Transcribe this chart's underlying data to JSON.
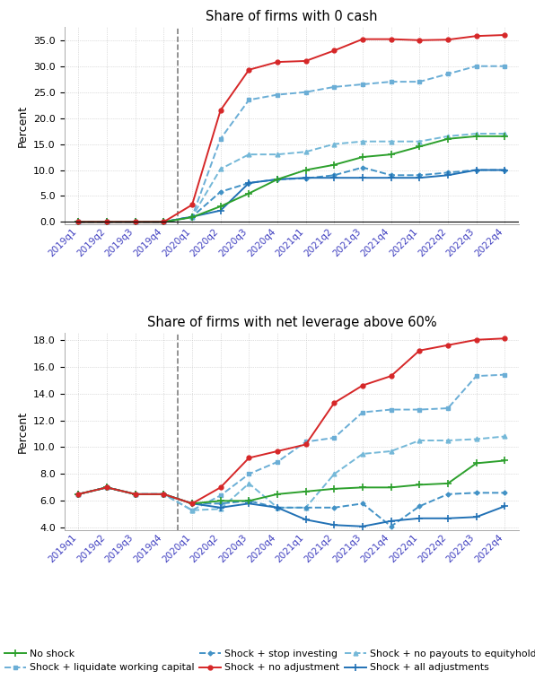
{
  "quarters": [
    "2019q1",
    "2019q2",
    "2019q3",
    "2019q4",
    "2020q1",
    "2020q2",
    "2020q3",
    "2020q4",
    "2021q1",
    "2021q2",
    "2021q3",
    "2021q4",
    "2022q1",
    "2022q2",
    "2022q3",
    "2022q4"
  ],
  "panel1": {
    "title": "Share of firms with 0 cash",
    "ylabel": "Percent",
    "ylim": [
      -0.5,
      37.5
    ],
    "yticks": [
      0.0,
      5.0,
      10.0,
      15.0,
      20.0,
      25.0,
      30.0,
      35.0
    ],
    "no_shock": [
      0.0,
      0.0,
      0.0,
      0.0,
      0.9,
      3.0,
      5.5,
      8.2,
      10.0,
      11.0,
      12.5,
      13.0,
      14.5,
      16.0,
      16.5,
      16.5
    ],
    "shock_no_adj": [
      0.0,
      0.0,
      0.0,
      0.0,
      3.3,
      21.5,
      29.3,
      30.8,
      31.0,
      33.0,
      35.2,
      35.2,
      35.0,
      35.1,
      35.8,
      36.0
    ],
    "shock_liquidate": [
      0.0,
      0.0,
      0.0,
      0.0,
      1.0,
      16.0,
      23.5,
      24.5,
      25.0,
      26.0,
      26.5,
      27.0,
      27.0,
      28.5,
      30.0,
      30.0
    ],
    "shock_no_payouts": [
      0.0,
      0.0,
      0.0,
      0.0,
      1.0,
      10.2,
      13.0,
      13.0,
      13.5,
      15.0,
      15.5,
      15.5,
      15.5,
      16.5,
      17.0,
      17.0
    ],
    "shock_stop_invest": [
      0.0,
      0.0,
      0.0,
      0.0,
      1.0,
      5.8,
      7.5,
      8.2,
      8.4,
      9.0,
      10.5,
      9.0,
      9.0,
      9.5,
      10.0,
      10.0
    ],
    "shock_all_adj": [
      0.0,
      0.0,
      0.0,
      0.0,
      1.0,
      2.2,
      7.5,
      8.2,
      8.5,
      8.5,
      8.5,
      8.5,
      8.5,
      9.0,
      10.0,
      10.0
    ]
  },
  "panel2": {
    "title": "Share of firms with net leverage above 60%",
    "ylabel": "Percent",
    "ylim": [
      3.8,
      18.5
    ],
    "yticks": [
      4.0,
      6.0,
      8.0,
      10.0,
      12.0,
      14.0,
      16.0,
      18.0
    ],
    "no_shock": [
      6.5,
      7.0,
      6.5,
      6.5,
      5.8,
      6.0,
      6.0,
      6.5,
      6.7,
      6.9,
      7.0,
      7.0,
      7.2,
      7.3,
      8.8,
      9.0
    ],
    "shock_no_adj": [
      6.5,
      7.0,
      6.5,
      6.5,
      5.8,
      7.0,
      9.2,
      9.7,
      10.2,
      13.3,
      14.6,
      15.3,
      17.2,
      17.6,
      18.0,
      18.1
    ],
    "shock_liquidate": [
      6.5,
      7.0,
      6.5,
      6.5,
      5.3,
      6.4,
      8.0,
      8.9,
      10.4,
      10.7,
      12.6,
      12.8,
      12.8,
      12.9,
      15.3,
      15.4
    ],
    "shock_no_payouts": [
      6.5,
      7.0,
      6.5,
      6.5,
      5.3,
      5.4,
      7.3,
      5.5,
      5.5,
      8.0,
      9.5,
      9.7,
      10.5,
      10.5,
      10.6,
      10.8
    ],
    "shock_stop_invest": [
      6.5,
      7.0,
      6.5,
      6.5,
      5.8,
      5.8,
      6.0,
      5.5,
      5.5,
      5.5,
      5.8,
      4.1,
      5.6,
      6.5,
      6.6,
      6.6
    ],
    "shock_all_adj": [
      6.5,
      7.0,
      6.5,
      6.5,
      5.8,
      5.5,
      5.8,
      5.5,
      4.6,
      4.2,
      4.1,
      4.5,
      4.7,
      4.7,
      4.8,
      5.6
    ]
  },
  "colors": {
    "no_shock": "#2ca02c",
    "shock_no_adj": "#d62728",
    "shock_liquidate": "#6baed6",
    "shock_no_payouts": "#74b8d8",
    "shock_stop_invest": "#4292c6",
    "shock_all_adj": "#2171b5"
  },
  "dashed_vline_x": 3.5,
  "background_color": "#ffffff",
  "grid_color": "#c0c0c0"
}
